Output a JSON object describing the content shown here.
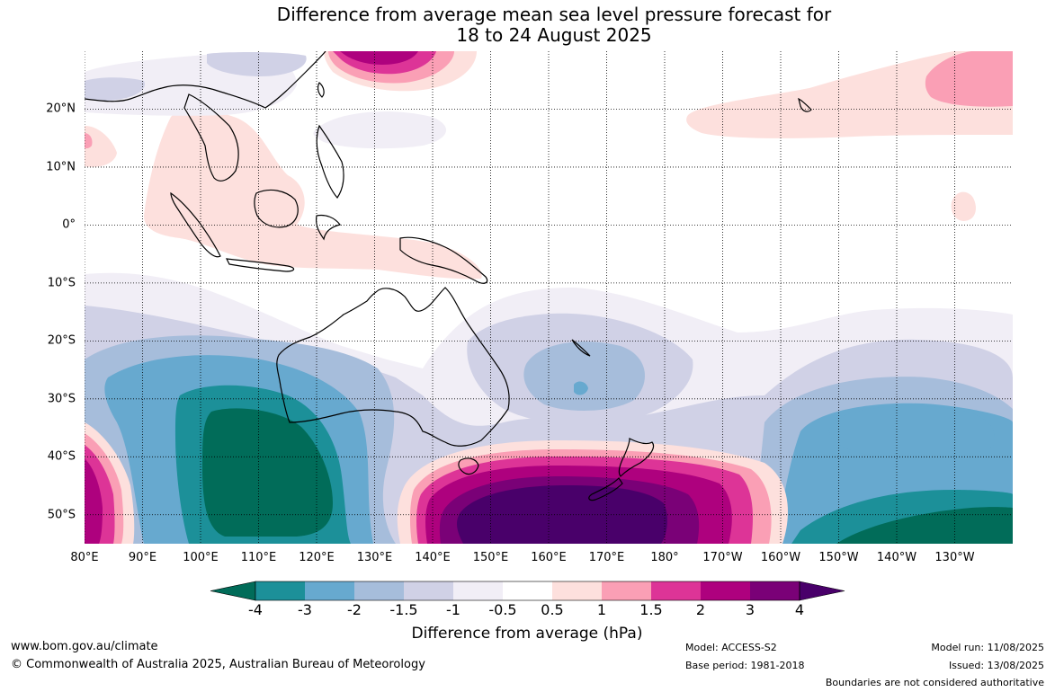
{
  "title": {
    "line1": "Difference from average mean sea level pressure forecast for",
    "line2": "18 to 24 August 2025"
  },
  "map": {
    "lon_labels": [
      "80°E",
      "90°E",
      "100°E",
      "110°E",
      "120°E",
      "130°E",
      "140°E",
      "150°E",
      "160°E",
      "170°E",
      "180°",
      "170°W",
      "160°W",
      "150°W",
      "140°W",
      "130°W"
    ],
    "lat_labels": [
      "20°N",
      "10°N",
      "0°",
      "10°S",
      "20°S",
      "30°S",
      "40°S",
      "50°S"
    ],
    "extent": {
      "lon_min": 80,
      "lon_max": 240,
      "lat_min": -55,
      "lat_max": 30
    },
    "anomaly_regions": [
      {
        "name": "south-indian-ocean-low",
        "center": "110°E 44°S",
        "min_hPa": -4
      },
      {
        "name": "south-pacific-low",
        "center": "140°W 52°S",
        "min_hPa": -4
      },
      {
        "name": "tasman-high",
        "center": "160°E 50°S",
        "max_hPa": 4
      },
      {
        "name": "southwest-indian-high",
        "center": "80°E 45°S",
        "max_hPa": 2
      },
      {
        "name": "north-pacific-high",
        "center": "135°W 24°N",
        "max_hPa": 1.5
      },
      {
        "name": "south-china-sea-high",
        "center": "150°E 30°N",
        "max_hPa": 3
      },
      {
        "name": "coral-sea-low",
        "center": "163°E 25°S",
        "min_hPa": -1.5
      }
    ]
  },
  "colorbar": {
    "ticks": [
      "-4",
      "-3",
      "-2",
      "-1.5",
      "-1",
      "-0.5",
      "0.5",
      "1",
      "1.5",
      "2",
      "3",
      "4"
    ],
    "colors": [
      "#016c59",
      "#1c9099",
      "#67a9cf",
      "#a6bddb",
      "#d0d1e6",
      "#f1eef6",
      "#ffffff",
      "#fde0dd",
      "#fa9fb5",
      "#dd3497",
      "#ae017e",
      "#7a0177",
      "#49006a"
    ],
    "label": "Difference from average (hPa)"
  },
  "footer": {
    "website": "www.bom.gov.au/climate",
    "copyright": "© Commonwealth of Australia 2025, Australian Bureau of Meteorology",
    "model": "Model: ACCESS-S2",
    "base_period": "Base period: 1981-2018",
    "model_run": "Model run: 11/08/2025",
    "issued": "Issued: 13/08/2025",
    "disclaimer": "Boundaries are not considered authoritative"
  }
}
